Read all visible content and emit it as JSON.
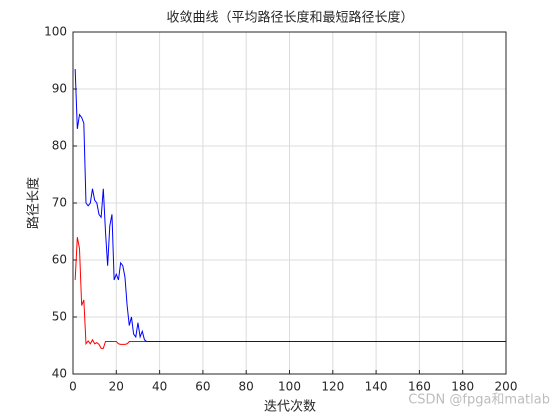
{
  "chart_data": {
    "type": "line",
    "title": "收敛曲线（平均路径长度和最短路径长度）",
    "xlabel": "迭代次数",
    "ylabel": "路径长度",
    "x": [
      1,
      2,
      3,
      4,
      5,
      6,
      7,
      8,
      9,
      10,
      11,
      12,
      13,
      14,
      15,
      16,
      17,
      18,
      19,
      20,
      21,
      22,
      23,
      24,
      25,
      26,
      27,
      28,
      29,
      30,
      31,
      32,
      33,
      34,
      200
    ],
    "series": [
      {
        "name": "平均路径长度",
        "color": "#0000ff",
        "values": [
          93.5,
          83,
          85.5,
          85,
          84,
          70,
          69.5,
          70,
          72.5,
          70.5,
          70,
          68,
          67.5,
          72.5,
          65,
          59,
          66,
          68,
          56.5,
          57.5,
          56.5,
          59.5,
          59,
          57,
          52,
          48.5,
          50,
          47,
          46.5,
          49,
          46.5,
          47.5,
          46,
          45.7,
          45.7
        ]
      },
      {
        "name": "最短路径长度",
        "color": "#ff0000",
        "values": [
          56.5,
          64,
          62,
          52,
          53,
          45.3,
          45.8,
          45.3,
          46,
          45.3,
          45.5,
          45.2,
          44.5,
          44.5,
          45.7,
          45.7,
          45.7,
          45.7,
          45.7,
          45.7,
          45.3,
          45.2,
          45.2,
          45.2,
          45.3,
          45.7,
          45.7,
          45.7,
          45.7,
          45.7,
          45.7,
          45.7,
          45.7,
          45.7,
          45.7
        ]
      }
    ],
    "xlim": [
      0,
      200
    ],
    "xticks": [
      0,
      20,
      40,
      60,
      80,
      100,
      120,
      140,
      160,
      180,
      200
    ],
    "ylim": [
      40,
      100
    ],
    "yticks": [
      40,
      50,
      60,
      70,
      80,
      90,
      100
    ],
    "grid": true,
    "watermark": "CSDN @fpga和matlab"
  }
}
